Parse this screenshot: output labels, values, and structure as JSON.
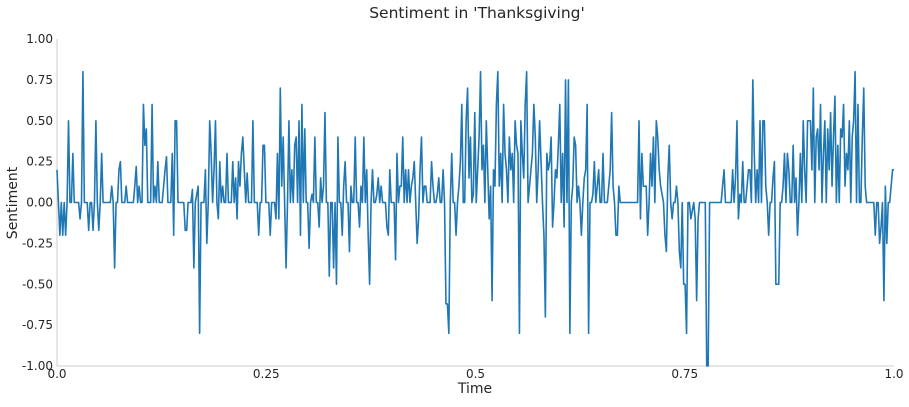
{
  "chart_data": {
    "type": "line",
    "title": "Sentiment in 'Thanksgiving'",
    "xlabel": "Time",
    "ylabel": "Sentiment",
    "xlim": [
      0,
      1
    ],
    "ylim": [
      -1,
      1
    ],
    "x_ticks": [
      0,
      0.25,
      0.5,
      0.75,
      1
    ],
    "x_tick_labels": [
      "0.0",
      "0.25",
      "0.5",
      "0.75",
      "1.0"
    ],
    "y_ticks": [
      -1,
      -0.75,
      -0.5,
      -0.25,
      0,
      0.25,
      0.5,
      0.75,
      1
    ],
    "y_tick_labels": [
      "-1.00",
      "-0.75",
      "-0.50",
      "-0.25",
      "0.00",
      "0.25",
      "0.50",
      "0.75",
      "1.00"
    ],
    "grid": false,
    "line_color": "#1f77b4",
    "series": [
      {
        "values": [
          0.2,
          0,
          -0.2,
          0,
          -0.2,
          0,
          -0.2,
          0,
          0.5,
          0,
          0,
          0.3,
          0,
          0,
          0,
          0,
          -0.1,
          0,
          0.8,
          0,
          0,
          0,
          -0.17,
          0,
          0,
          -0.17,
          0,
          0.5,
          0,
          -0.17,
          0,
          0.3,
          0,
          0,
          0,
          0,
          0,
          0,
          0.1,
          0,
          -0.4,
          0,
          0,
          0.2,
          0.25,
          0,
          0,
          0,
          0.1,
          0,
          0,
          0,
          0,
          0,
          0.1,
          0.22,
          0,
          0.1,
          0,
          0,
          0.6,
          0.35,
          0.45,
          0,
          0,
          0,
          0.6,
          0,
          0.1,
          0,
          0.25,
          0,
          0,
          0,
          0.1,
          0.2,
          0.28,
          0,
          0,
          0,
          0.3,
          -0.2,
          0.5,
          0.5,
          0,
          0,
          0,
          0,
          0,
          -0.17,
          -0.17,
          0,
          0,
          0,
          0.08,
          -0.4,
          0,
          0.05,
          0.1,
          -0.8,
          0,
          0,
          0,
          0.2,
          -0.25,
          0,
          0.5,
          0.3,
          0,
          0.2,
          0.5,
          0,
          -0.1,
          0.25,
          0,
          0.1,
          0,
          0,
          0.3,
          0,
          0,
          0,
          0.25,
          0,
          0.15,
          -0.1,
          0.25,
          0.1,
          0.3,
          0.4,
          0.2,
          0,
          0.18,
          0,
          0,
          0,
          0.5,
          0,
          0,
          0,
          -0.2,
          0,
          0,
          0.35,
          0.35,
          0,
          0,
          0,
          -0.2,
          0,
          0,
          0,
          -0.1,
          0.3,
          -0.1,
          0.7,
          0.1,
          0.4,
          0,
          -0.4,
          0,
          0.5,
          0,
          0.2,
          0,
          0.35,
          0.4,
          0,
          0.5,
          -0.2,
          0.6,
          0,
          0.45,
          0,
          0,
          -0.28,
          0,
          0.05,
          0,
          0.4,
          0,
          0,
          -0.15,
          0.15,
          0,
          0.1,
          0.55,
          0,
          0,
          -0.45,
          0,
          0,
          -0.4,
          0,
          -0.5,
          0.4,
          0,
          0,
          -0.2,
          0.1,
          0.25,
          0,
          0,
          -0.3,
          0.1,
          0,
          0,
          0.4,
          0,
          0,
          -0.15,
          0.1,
          0,
          0.4,
          0,
          0.2,
          -0.2,
          -0.5,
          0,
          0.2,
          0,
          0,
          0.05,
          0.15,
          0,
          0.1,
          0,
          0,
          0,
          -0.15,
          -0.2,
          0.2,
          0,
          0,
          0,
          -0.35,
          0.3,
          0,
          0.1,
          0.1,
          0.4,
          0,
          0.2,
          0,
          0.2,
          0,
          0.1,
          0.15,
          0.25,
          0,
          -0.25,
          -0.1,
          0.2,
          0.4,
          0,
          0.1,
          0.1,
          0,
          0,
          0,
          0.25,
          0.1,
          0,
          0,
          0.05,
          0.15,
          0,
          0,
          0.2,
          0,
          -0.62,
          -0.62,
          -0.8,
          0,
          0.3,
          0,
          0,
          -0.2,
          0,
          0.1,
          0.25,
          0.6,
          0,
          0,
          0.5,
          0.7,
          0.15,
          0.4,
          0,
          0.05,
          0.55,
          0,
          0.2,
          0.4,
          0.8,
          0.2,
          0.35,
          0,
          0.5,
          0.2,
          -0.1,
          0.1,
          -0.6,
          0.2,
          0.1,
          0.6,
          0.8,
          0.1,
          0.3,
          0,
          0.6,
          0.3,
          0.2,
          0,
          0.4,
          0.2,
          0.3,
          0,
          0.5,
          0.35,
          0.3,
          -0.8,
          0.5,
          0.3,
          0.15,
          0.6,
          0.8,
          0,
          0.1,
          0.2,
          0.3,
          0.6,
          0.4,
          0,
          0.2,
          0.5,
          0.25,
          0,
          -0.2,
          -0.7,
          0.3,
          0.2,
          0.25,
          0.4,
          -0.15,
          0,
          0.2,
          0.15,
          0.35,
          0.6,
          0,
          0.3,
          -0.15,
          0.75,
          0,
          0.75,
          -0.8,
          0,
          0.1,
          0.4,
          0.35,
          0,
          0.1,
          0,
          -0.2,
          0,
          0.15,
          0.2,
          0.6,
          -0.8,
          0,
          0,
          0.05,
          0.25,
          0,
          0.1,
          0.2,
          0,
          0,
          0.3,
          0,
          0,
          0,
          0.1,
          0.2,
          0.55,
          0.1,
          0,
          -0.2,
          -0.2,
          0.1,
          0,
          0,
          0,
          0,
          0,
          0,
          0,
          0,
          0,
          0,
          0,
          0,
          0,
          0.5,
          -0.1,
          0.3,
          0.1,
          0.1,
          0.1,
          -0.2,
          0,
          0.3,
          0.1,
          0.4,
          0,
          0.5,
          0.4,
          0.2,
          0.1,
          0.05,
          0,
          -0.2,
          -0.3,
          0.15,
          0.35,
          0,
          -0.1,
          0,
          0,
          0.1,
          0,
          -0.3,
          -0.4,
          0,
          -0.5,
          -0.5,
          -0.8,
          0,
          0,
          -0.1,
          -0.05,
          0,
          -0.1,
          -0.6,
          -0.1,
          0,
          0,
          0,
          0,
          0,
          -1,
          -1,
          0,
          0,
          0,
          0,
          0,
          0,
          0,
          0,
          0,
          0.1,
          0.2,
          0,
          0,
          0,
          0,
          0,
          0.2,
          0,
          0.15,
          0.5,
          -0.1,
          0.05,
          0,
          0.25,
          0,
          0,
          0.1,
          0.2,
          0.2,
          0,
          0.75,
          0.3,
          0,
          0.2,
          0,
          0.5,
          0,
          0.5,
          0.5,
          0.1,
          0,
          -0.2,
          0,
          0,
          0.15,
          0.25,
          -0.5,
          -0.5,
          -0.5,
          0,
          0,
          0.1,
          0.3,
          0,
          0.3,
          0.2,
          0,
          0,
          0.35,
          0,
          0.15,
          -0.2,
          0,
          0.3,
          0,
          0.5,
          0.2,
          0,
          0.5,
          0.5,
          0.5,
          0.2,
          0.7,
          0,
          0.4,
          0.45,
          0.2,
          0.6,
          0,
          0.3,
          0.5,
          0,
          0.45,
          0.2,
          0.55,
          0.1,
          0.4,
          0.65,
          0,
          0.35,
          0,
          0.45,
          0.4,
          0.6,
          0.1,
          0.3,
          0.2,
          0.5,
          0,
          0.4,
          0.5,
          0.8,
          0,
          0.6,
          0,
          0,
          0.4,
          0.7,
          0.1,
          0,
          0,
          0,
          0,
          0,
          0,
          -0.2,
          0,
          0,
          -0.25,
          -0.15,
          0,
          -0.6,
          0.1,
          -0.25,
          0,
          0,
          0.1,
          0.2,
          0.2
        ]
      }
    ]
  }
}
